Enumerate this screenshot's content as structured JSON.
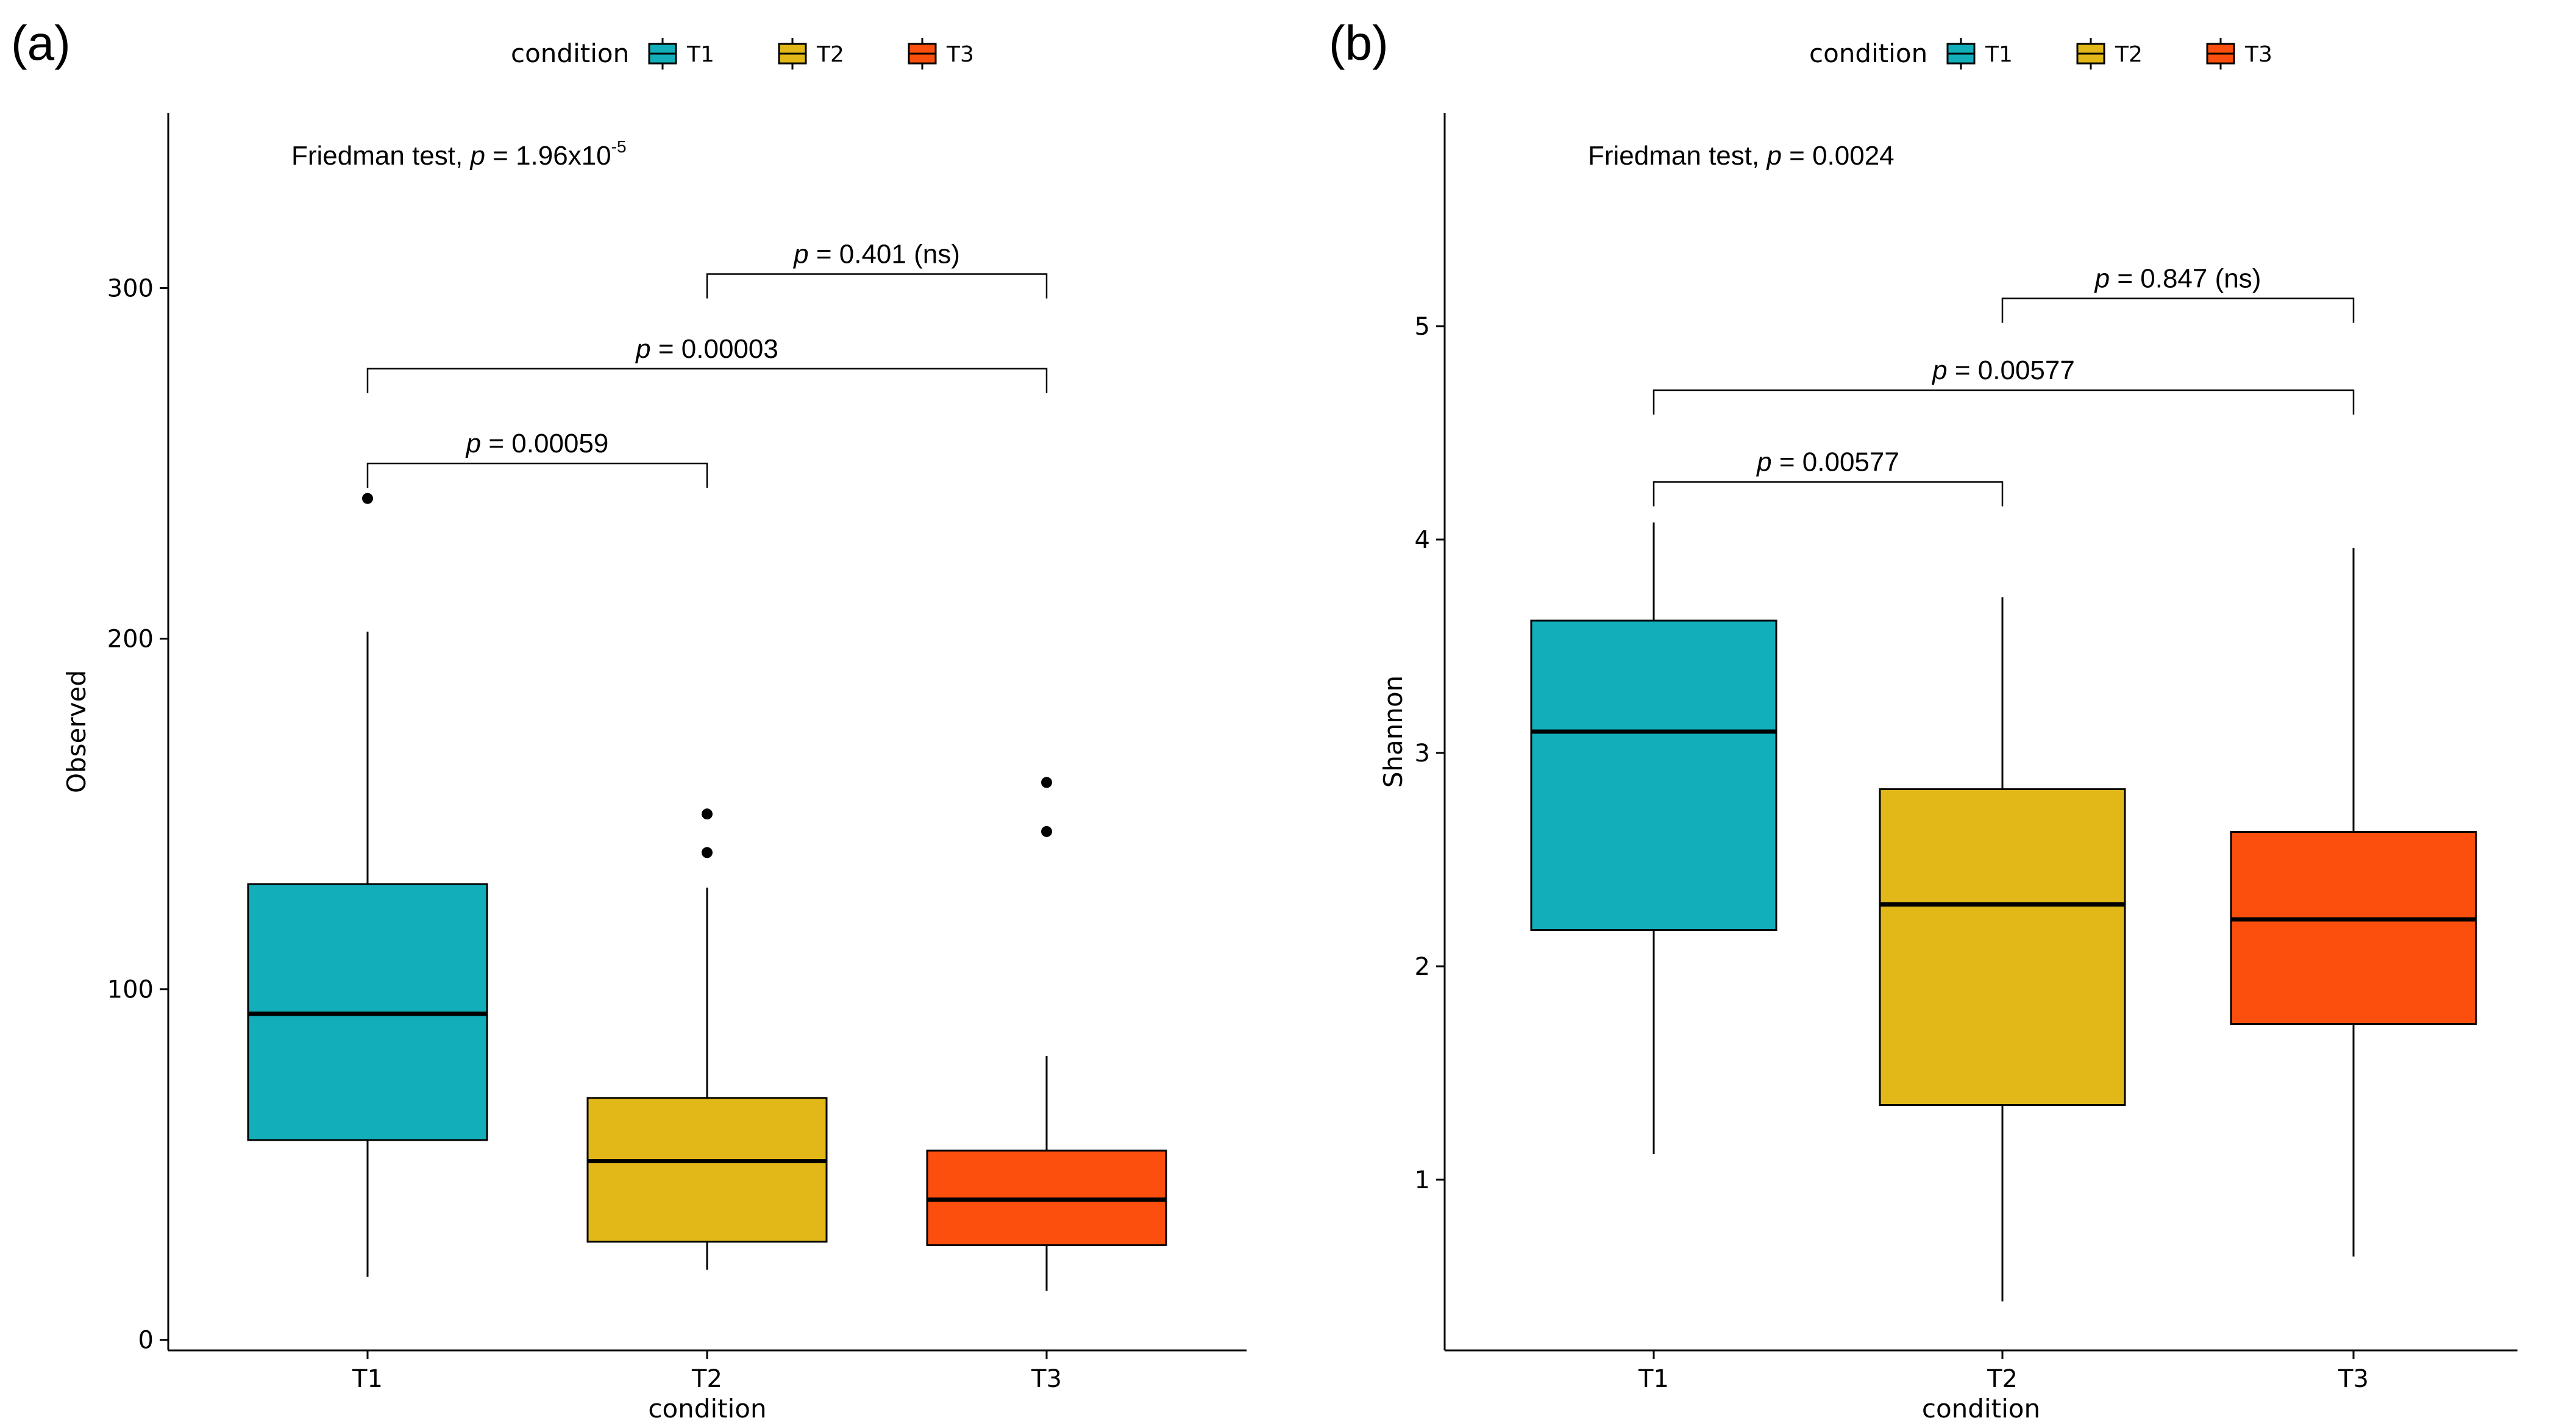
{
  "legend": {
    "title": "condition",
    "entries": [
      {
        "label": "T1",
        "color": "#12AFBB"
      },
      {
        "label": "T2",
        "color": "#E2B818"
      },
      {
        "label": "T3",
        "color": "#FC4F0D"
      }
    ]
  },
  "chart_data": [
    {
      "panel_label": "(a)",
      "type": "box",
      "title": "",
      "xlabel": "condition",
      "ylabel": "Observed",
      "categories": [
        "T1",
        "T2",
        "T3"
      ],
      "ylim": [
        -3,
        350
      ],
      "yticks": [
        0,
        100,
        200,
        300
      ],
      "grid": false,
      "legend_placement": "top-center",
      "boxes": [
        {
          "category": "T1",
          "q1": 57,
          "median": 93,
          "q3": 130,
          "whisker_low": 18,
          "whisker_high": 202,
          "outliers": [
            240
          ],
          "color": "#12AFBB"
        },
        {
          "category": "T2",
          "q1": 28,
          "median": 51,
          "q3": 69,
          "whisker_low": 20,
          "whisker_high": 129,
          "outliers": [
            139,
            150
          ],
          "color": "#E2B818"
        },
        {
          "category": "T3",
          "q1": 27,
          "median": 40,
          "q3": 54,
          "whisker_low": 14,
          "whisker_high": 81,
          "outliers": [
            145,
            159
          ],
          "color": "#FC4F0D"
        }
      ],
      "overall_test": {
        "prefix": "Friedman test, ",
        "p_symbol": "p",
        "equals": " = 1.96x10",
        "superscript": "-5"
      },
      "comparisons": [
        {
          "from": "T1",
          "to": "T2",
          "y": 250,
          "p_symbol": "p",
          "text": " = 0.00059"
        },
        {
          "from": "T1",
          "to": "T3",
          "y": 277,
          "p_symbol": "p",
          "text": " = 0.00003"
        },
        {
          "from": "T2",
          "to": "T3",
          "y": 304,
          "p_symbol": "p",
          "text": " = 0.401 (ns)"
        }
      ]
    },
    {
      "panel_label": "(b)",
      "type": "box",
      "title": "",
      "xlabel": "condition",
      "ylabel": "Shannon",
      "categories": [
        "T1",
        "T2",
        "T3"
      ],
      "ylim": [
        0.2,
        6.0
      ],
      "yticks": [
        1,
        2,
        3,
        4,
        5
      ],
      "grid": false,
      "legend_placement": "top-center",
      "boxes": [
        {
          "category": "T1",
          "q1": 2.17,
          "median": 3.1,
          "q3": 3.62,
          "whisker_low": 1.12,
          "whisker_high": 4.08,
          "outliers": [],
          "color": "#12AFBB"
        },
        {
          "category": "T2",
          "q1": 1.35,
          "median": 2.29,
          "q3": 2.83,
          "whisker_low": 0.43,
          "whisker_high": 3.73,
          "outliers": [],
          "color": "#E2B818"
        },
        {
          "category": "T3",
          "q1": 1.73,
          "median": 2.22,
          "q3": 2.63,
          "whisker_low": 0.64,
          "whisker_high": 3.96,
          "outliers": [],
          "color": "#FC4F0D"
        }
      ],
      "overall_test": {
        "prefix": "Friedman test, ",
        "p_symbol": "p",
        "equals": " = 0.0024",
        "superscript": ""
      },
      "comparisons": [
        {
          "from": "T1",
          "to": "T2",
          "y": 4.27,
          "p_symbol": "p",
          "text": " = 0.00577"
        },
        {
          "from": "T1",
          "to": "T3",
          "y": 4.7,
          "p_symbol": "p",
          "text": " = 0.00577"
        },
        {
          "from": "T2",
          "to": "T3",
          "y": 5.13,
          "p_symbol": "p",
          "text": " = 0.847 (ns)"
        }
      ]
    }
  ]
}
